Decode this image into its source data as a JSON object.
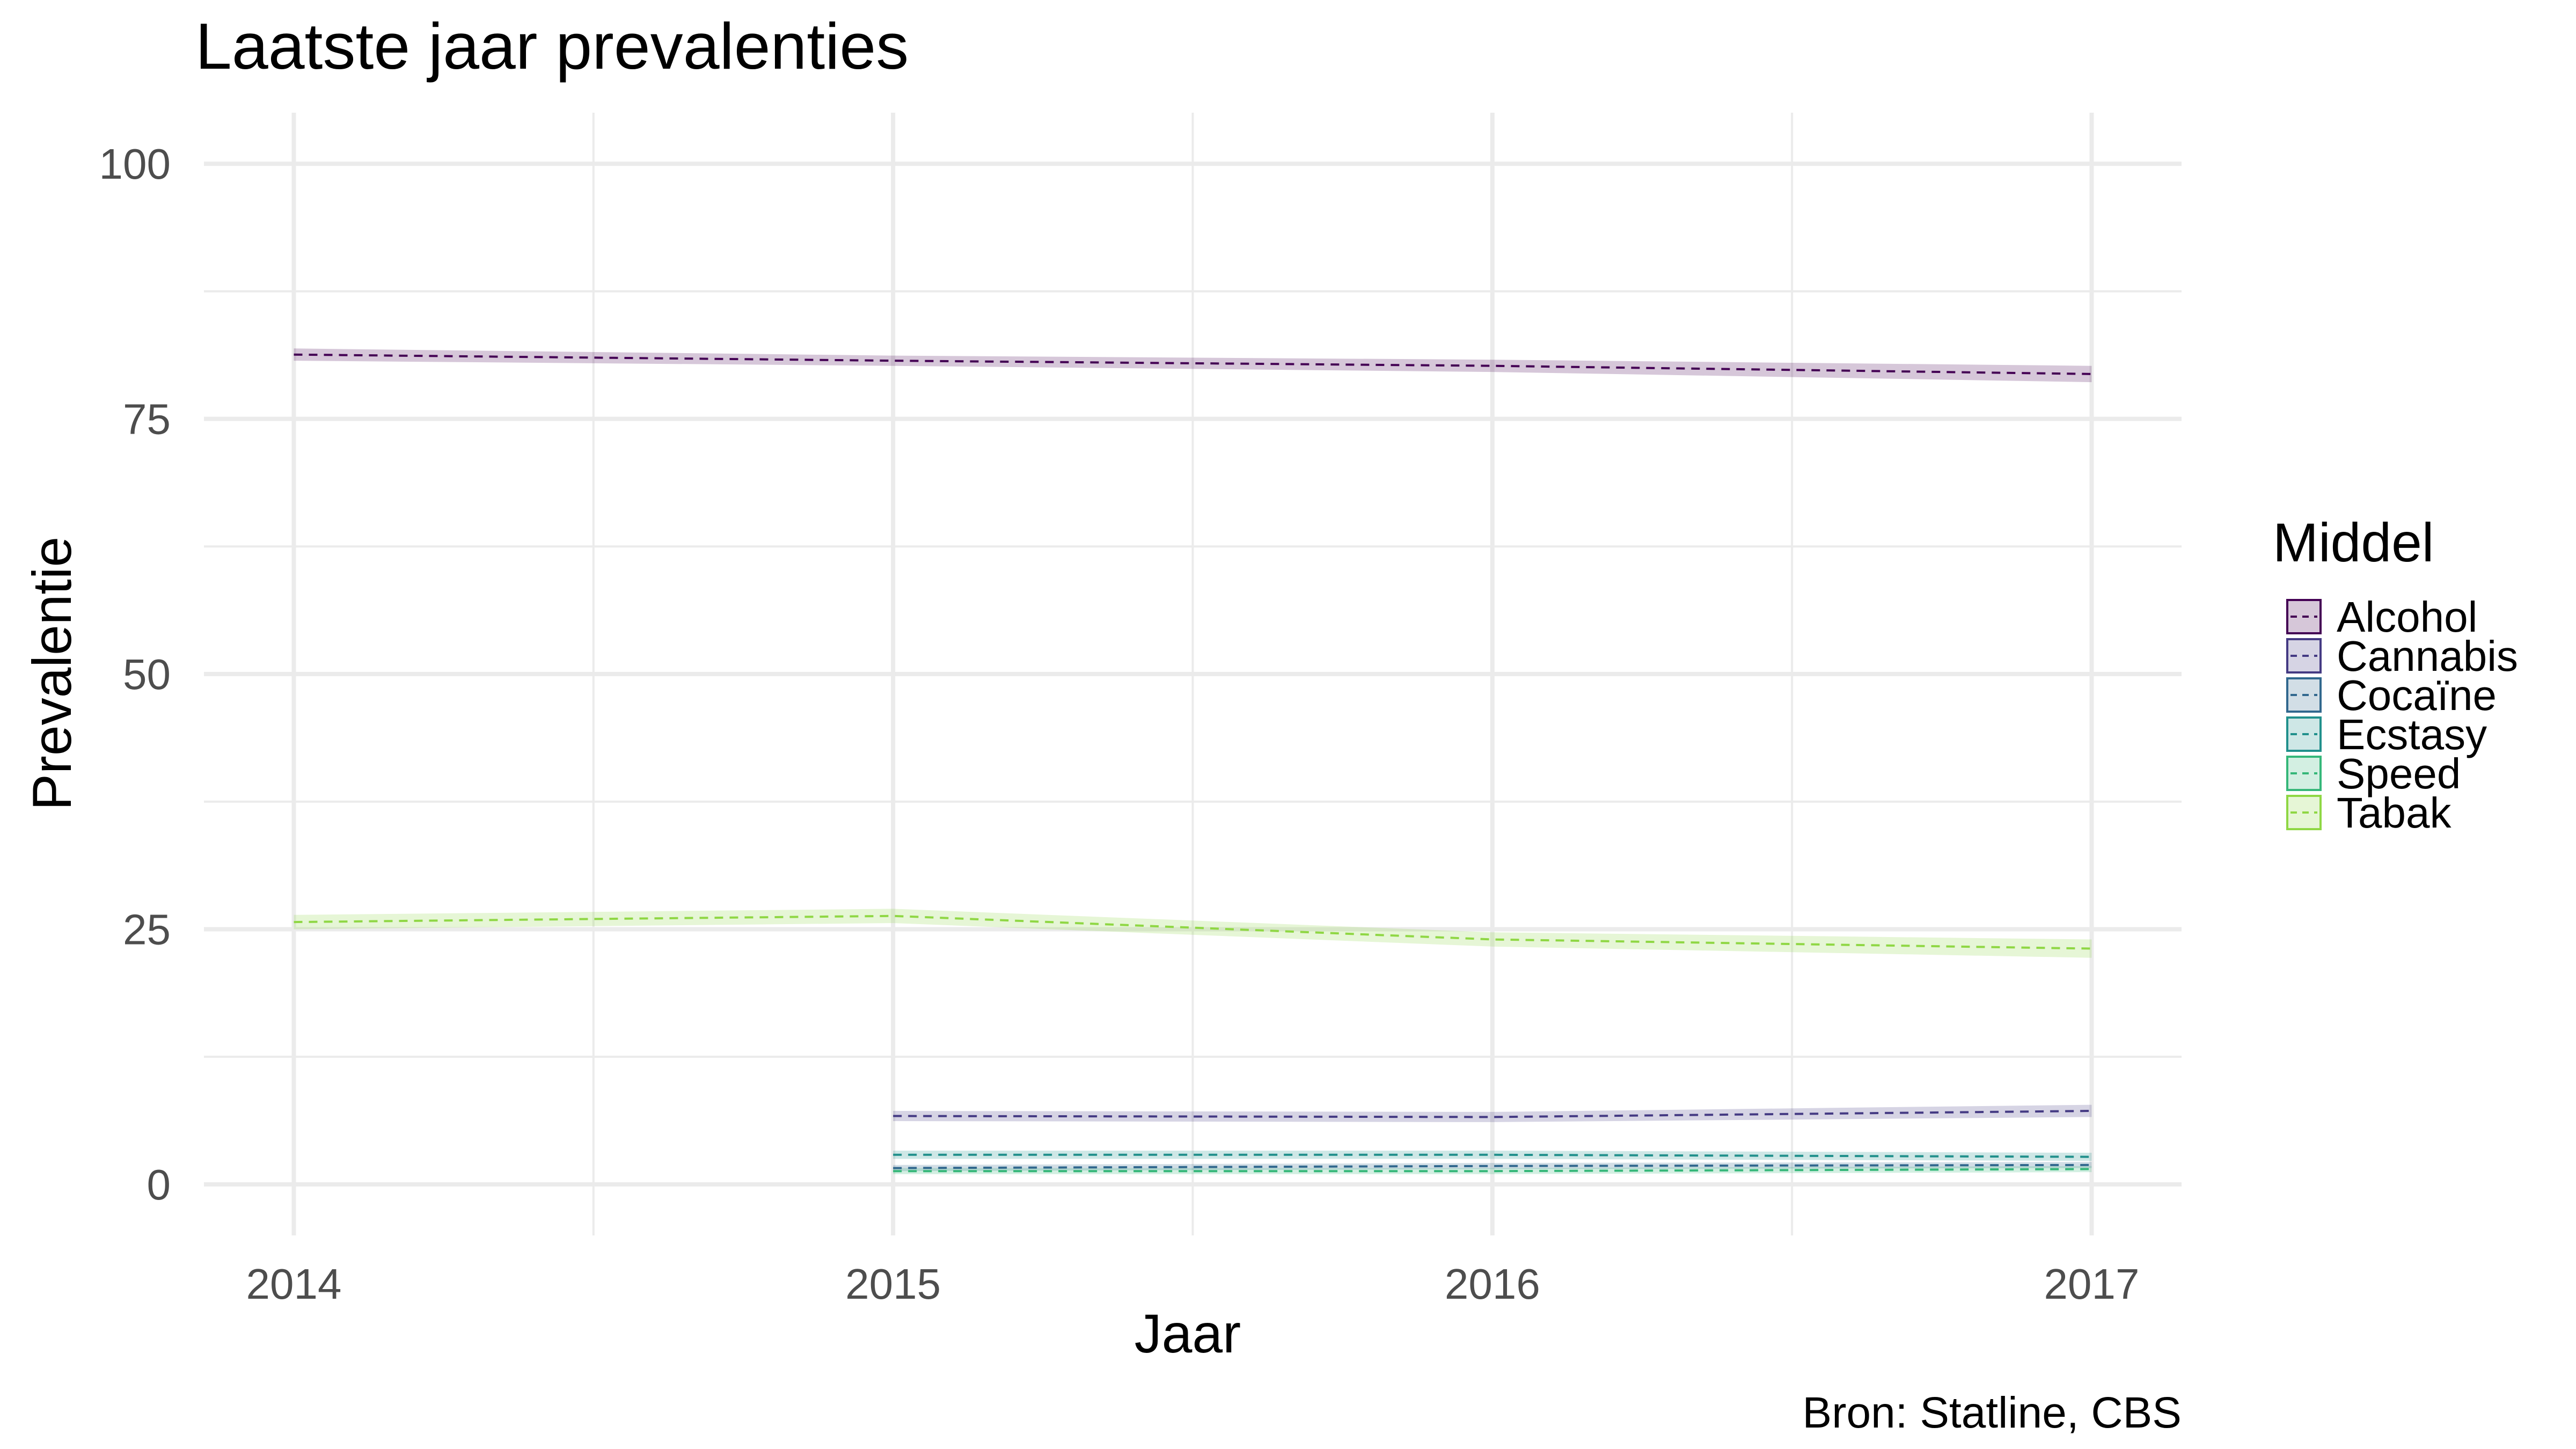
{
  "chart_data": {
    "type": "line",
    "title": "Laatste jaar prevalenties",
    "xlabel": "Jaar",
    "ylabel": "Prevalentie",
    "caption": "Bron: Statline, CBS",
    "legend_title": "Middel",
    "legend_position": "right",
    "grid": true,
    "xlim": [
      2013.85,
      2017.15
    ],
    "ylim": [
      -5,
      105
    ],
    "x_ticks": [
      2014,
      2015,
      2016,
      2017
    ],
    "x_tick_labels": [
      "2014",
      "2015",
      "2016",
      "2017"
    ],
    "y_ticks": [
      0,
      25,
      50,
      75,
      100
    ],
    "y_tick_labels": [
      "0",
      "25",
      "50",
      "75",
      "100"
    ],
    "series": [
      {
        "name": "Alcohol",
        "color": "#440154",
        "x": [
          2014,
          2015,
          2016,
          2017
        ],
        "values": [
          81.3,
          80.7,
          80.2,
          79.4
        ],
        "lower": [
          80.7,
          80.2,
          79.6,
          78.6
        ],
        "upper": [
          81.9,
          81.2,
          80.8,
          80.2
        ]
      },
      {
        "name": "Cannabis",
        "color": "#443A83",
        "x": [
          2015,
          2016,
          2017
        ],
        "values": [
          6.7,
          6.6,
          7.2
        ],
        "lower": [
          6.2,
          6.1,
          6.6
        ],
        "upper": [
          7.2,
          7.1,
          7.8
        ]
      },
      {
        "name": "Cocaïne",
        "color": "#31688E",
        "x": [
          2015,
          2016,
          2017
        ],
        "values": [
          1.6,
          1.8,
          1.9
        ],
        "lower": [
          1.3,
          1.5,
          1.6
        ],
        "upper": [
          1.9,
          2.1,
          2.2
        ]
      },
      {
        "name": "Ecstasy",
        "color": "#21908C",
        "x": [
          2015,
          2016,
          2017
        ],
        "values": [
          2.9,
          2.9,
          2.7
        ],
        "lower": [
          2.5,
          2.5,
          2.3
        ],
        "upper": [
          3.3,
          3.3,
          3.1
        ]
      },
      {
        "name": "Speed",
        "color": "#35B779",
        "x": [
          2015,
          2016,
          2017
        ],
        "values": [
          1.3,
          1.3,
          1.5
        ],
        "lower": [
          1.0,
          1.0,
          1.2
        ],
        "upper": [
          1.6,
          1.6,
          1.8
        ]
      },
      {
        "name": "Tabak",
        "color": "#8FD744",
        "x": [
          2014,
          2015,
          2016,
          2017
        ],
        "values": [
          25.7,
          26.3,
          24.0,
          23.1
        ],
        "lower": [
          25.0,
          25.6,
          23.3,
          22.2
        ],
        "upper": [
          26.4,
          27.0,
          24.7,
          24.0
        ]
      }
    ]
  }
}
